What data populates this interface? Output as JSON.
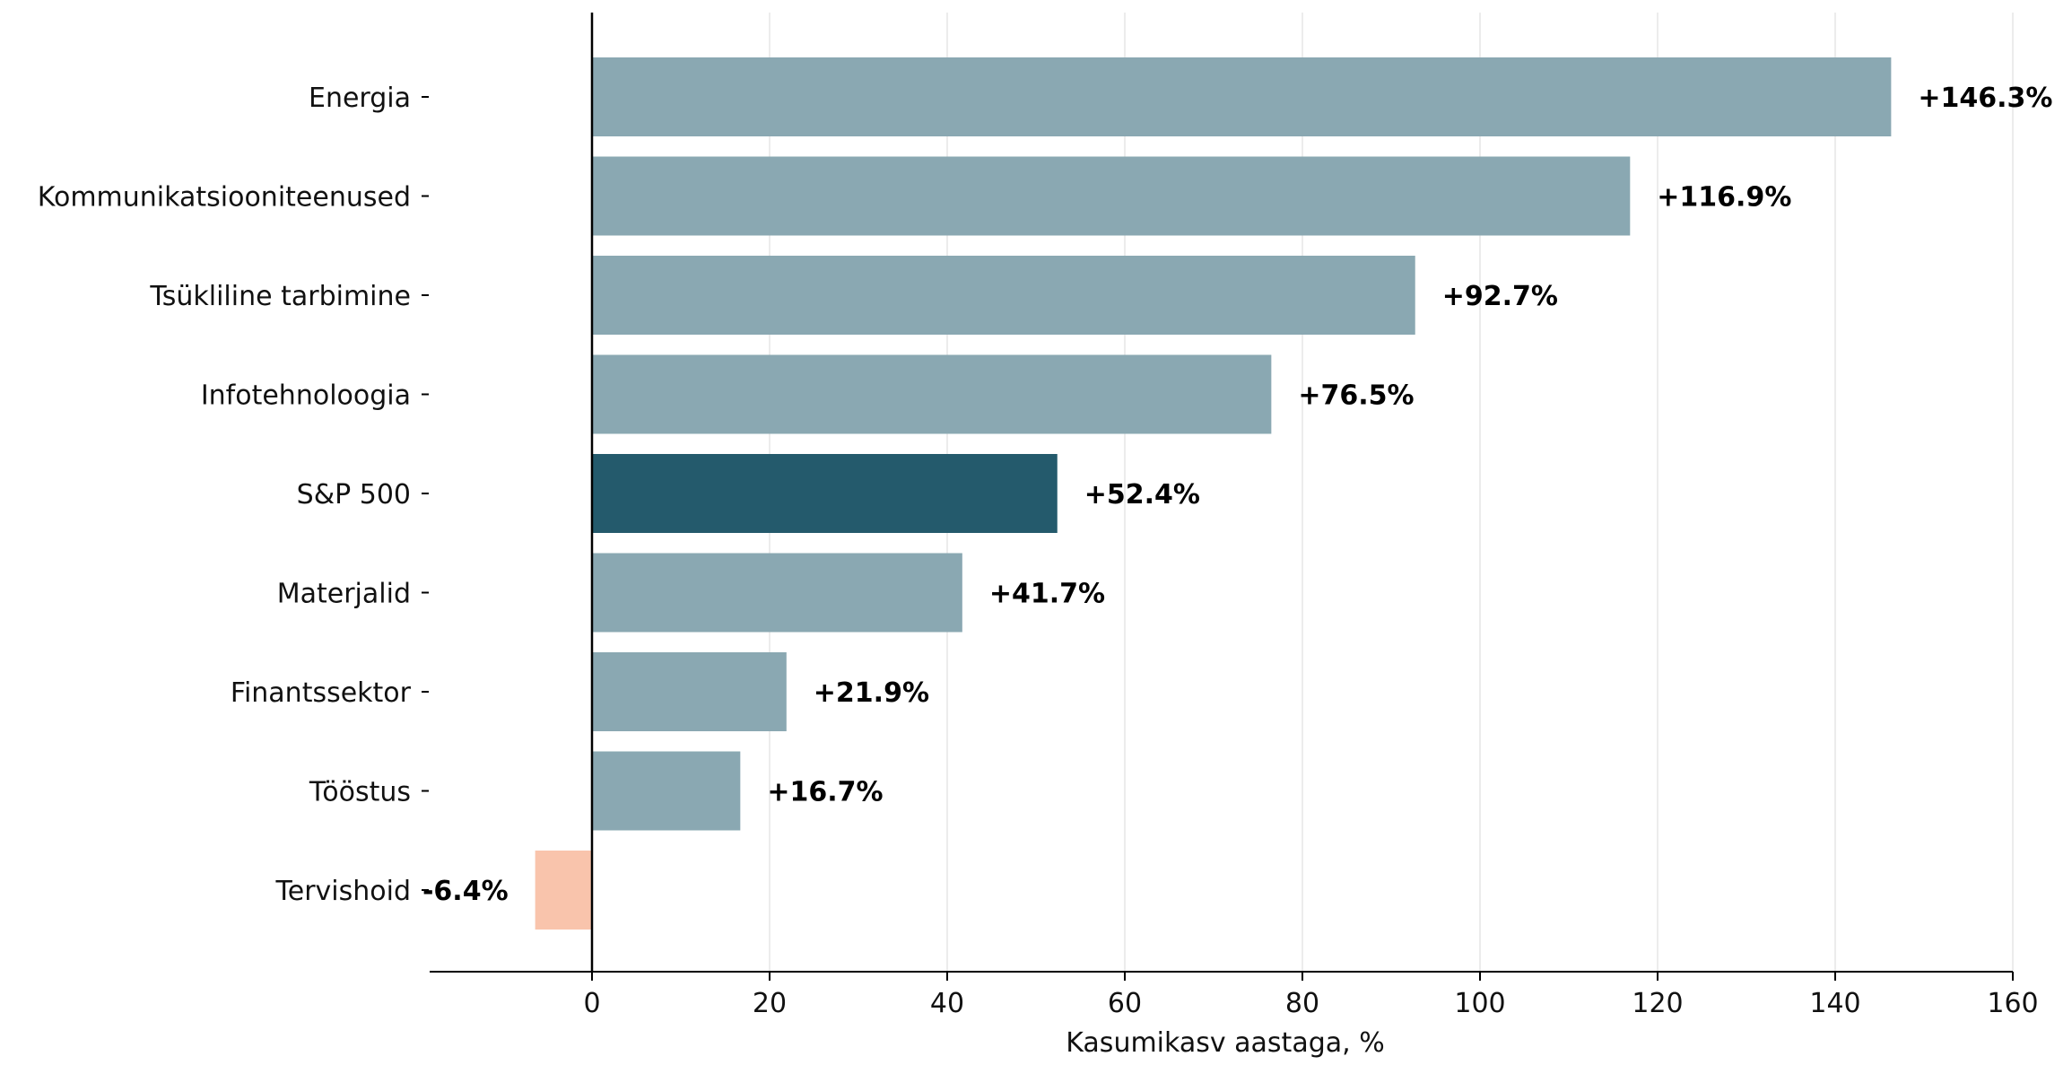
{
  "chart_data": {
    "type": "bar",
    "orientation": "horizontal",
    "categories": [
      "Energia",
      "Kommunikatsiooniteenused",
      "Tsükliline tarbimine",
      "Infotehnoloogia",
      "S&P 500",
      "Materjalid",
      "Finantssektor",
      "Tööstus",
      "Tervishoid"
    ],
    "values": [
      146.3,
      116.9,
      92.7,
      76.5,
      52.4,
      41.7,
      21.9,
      16.7,
      -6.4
    ],
    "value_labels": [
      "+146.3%",
      "+116.9%",
      "+92.7%",
      "+76.5%",
      "+52.4%",
      "+41.7%",
      "+21.9%",
      "+16.7%",
      "-6.4%"
    ],
    "highlight_category": "S&P 500",
    "xlabel": "Kasumikasv aastaga, %",
    "ylabel": "",
    "xlim": [
      -18,
      160
    ],
    "xticks": [
      0,
      20,
      40,
      60,
      80,
      100,
      120,
      140,
      160
    ],
    "xtick_labels": [
      "0",
      "20",
      "40",
      "60",
      "80",
      "100",
      "120",
      "140",
      "160"
    ],
    "grid": "vertical",
    "colors": {
      "positive": "#8aa8b2",
      "highlight": "#245a6c",
      "negative": "#f9c4ac",
      "grid": "#e6e6e6",
      "axis": "#000000"
    }
  }
}
